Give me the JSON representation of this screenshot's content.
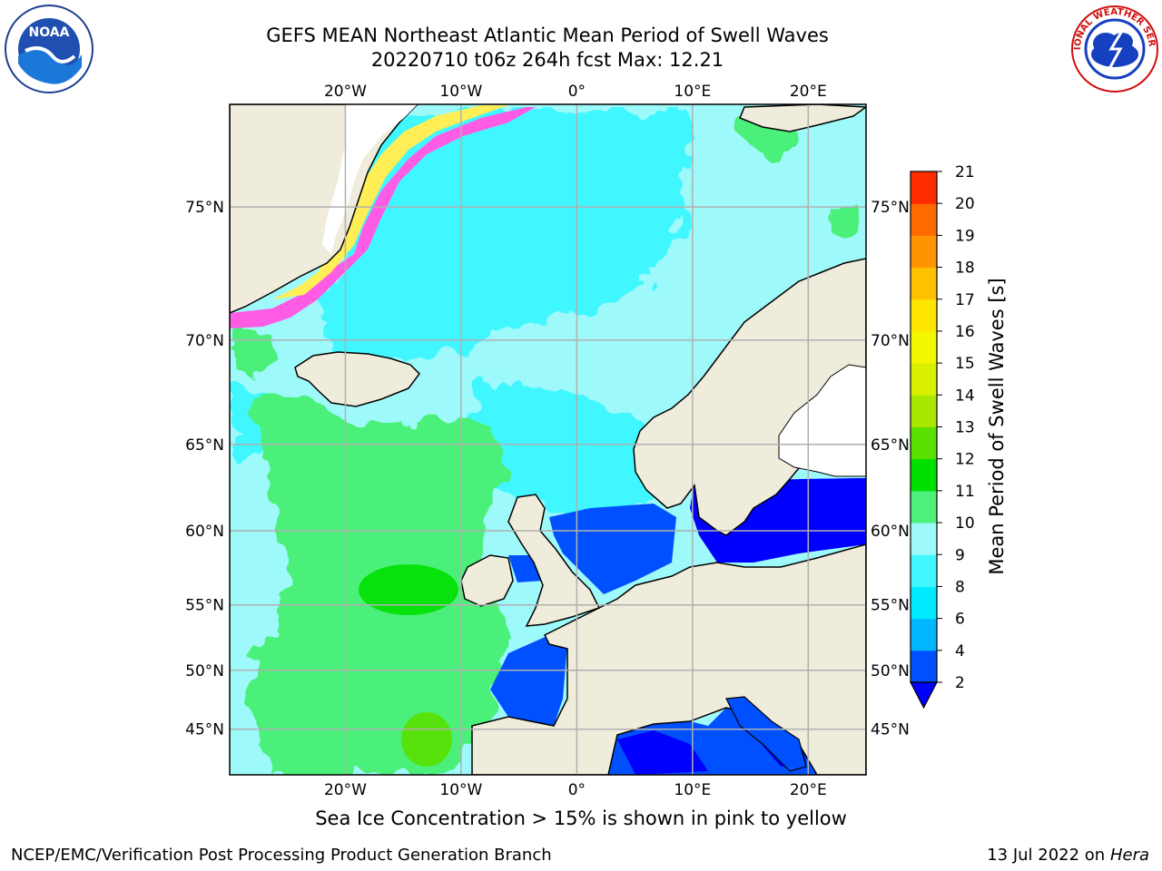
{
  "header": {
    "title_line1": "GEFS MEAN Northeast Atlantic Mean Period of Swell Waves",
    "title_line2": "20220710 t06z 264h fcst   Max: 12.21"
  },
  "logos": {
    "left": {
      "icon": "noaa-logo-icon",
      "text": "NOAA"
    },
    "right": {
      "icon": "nws-logo-icon",
      "text": "NATIONAL WEATHER SERVICE"
    }
  },
  "map": {
    "lon_range": [
      -30,
      25
    ],
    "lat_range": [
      40.8,
      78
    ],
    "lon_ticks": [
      {
        "lon": -20,
        "label": "20°W"
      },
      {
        "lon": -10,
        "label": "10°W"
      },
      {
        "lon": 0,
        "label": "0°"
      },
      {
        "lon": 10,
        "label": "10°E"
      },
      {
        "lon": 20,
        "label": "20°E"
      }
    ],
    "lat_ticks": [
      {
        "lat": 75,
        "label": "75°N"
      },
      {
        "lat": 70,
        "label": "70°N"
      },
      {
        "lat": 65,
        "label": "65°N"
      },
      {
        "lat": 60,
        "label": "60°N"
      },
      {
        "lat": 55,
        "label": "55°N"
      },
      {
        "lat": 50,
        "label": "50°N"
      },
      {
        "lat": 45,
        "label": "45°N"
      }
    ],
    "grid": true,
    "colors": {
      "land": "#efecdc",
      "ocean_default": "#9ef9fb",
      "grid": "#b0b0b0",
      "coast": "#000000",
      "ice_pink": "#ff5ce6",
      "ice_yellow": "#ffee55"
    }
  },
  "colorbar": {
    "label": "Mean Period of Swell Waves [s]",
    "extend": "min",
    "levels": [
      "2",
      "4",
      "6",
      "8",
      "9",
      "10",
      "11",
      "12",
      "13",
      "14",
      "15",
      "16",
      "17",
      "18",
      "19",
      "20",
      "21"
    ],
    "colors": [
      "#0050ff",
      "#00b7ff",
      "#00eaff",
      "#40f7ff",
      "#9ef9fb",
      "#4cf07a",
      "#00e000",
      "#5ae000",
      "#a8e800",
      "#d8ef00",
      "#f3f700",
      "#ffe600",
      "#ffc000",
      "#ff9400",
      "#ff6a00",
      "#ff2c00"
    ],
    "under_color": "#0000ff"
  },
  "footer": {
    "note": "Sea Ice Concentration > 15% is shown in pink to yellow",
    "credit": "NCEP/EMC/Verification Post Processing Product Generation Branch",
    "date": "13 Jul 2022 on ",
    "machine": "Hera"
  }
}
